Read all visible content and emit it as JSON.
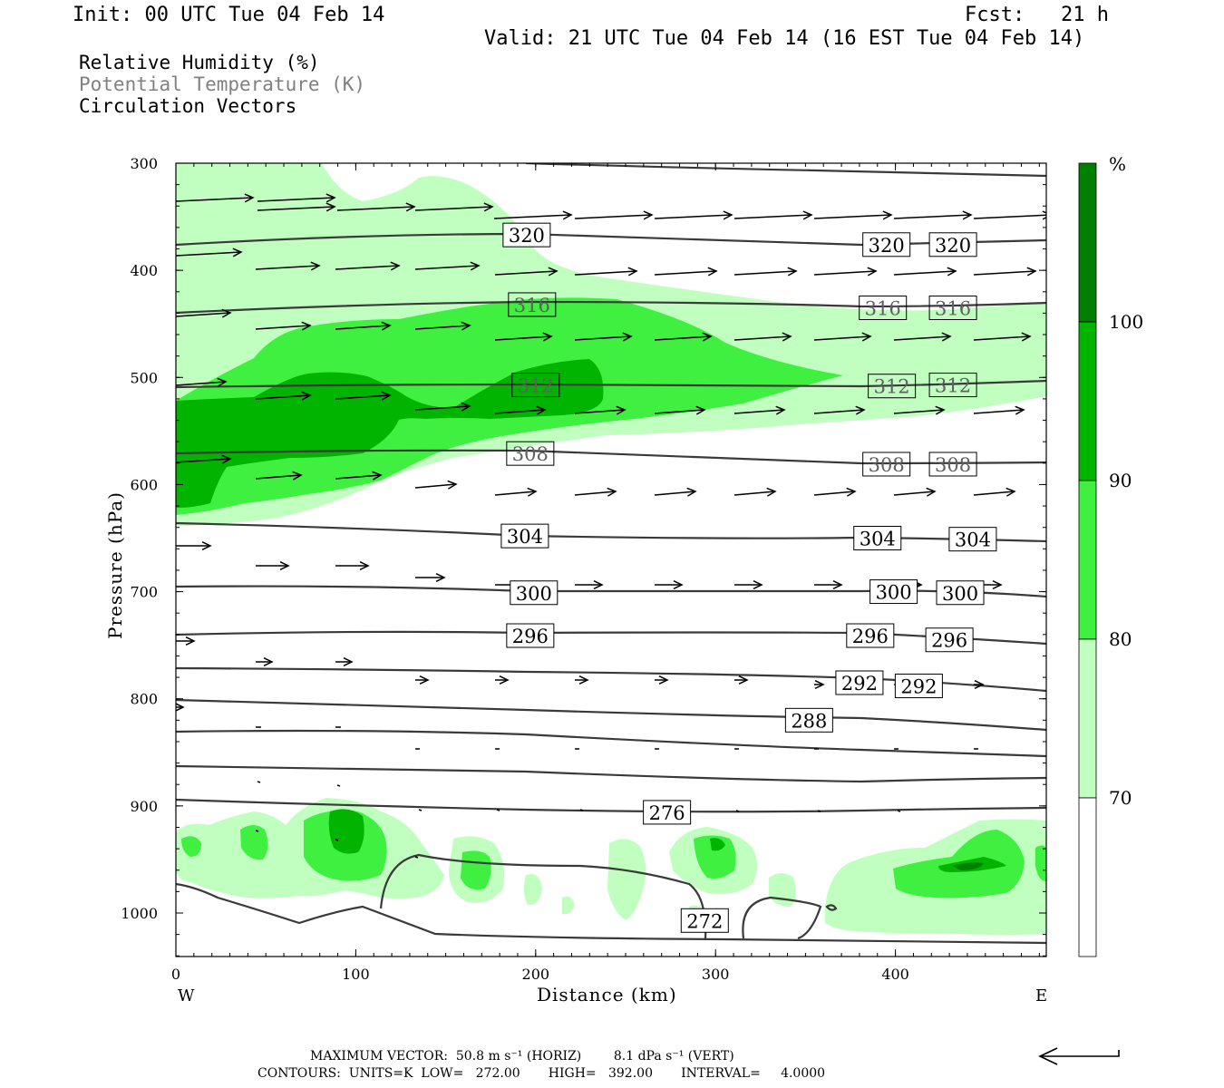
{
  "header": {
    "init": "Init: 00 UTC Tue 04 Feb 14",
    "fcst": "Fcst:   21 h",
    "valid": "Valid: 21 UTC Tue 04 Feb 14 (16 EST Tue 04 Feb 14)"
  },
  "variables": {
    "rh": "Relative Humidity (%)",
    "theta": "Potential Temperature (K)",
    "vectors": "Circulation Vectors"
  },
  "colors": {
    "rh_70": "#c0ffc0",
    "rh_80": "#40f040",
    "rh_90": "#00b400",
    "rh_100": "#008000",
    "contour": "#3a3a3a",
    "contour_labels_gray": "#606060"
  },
  "chart_data": {
    "type": "cross-section (filled contour + line contour + vectors)",
    "xlabel": "Distance (km)",
    "ylabel": "Pressure (hPa)",
    "xlim": [
      0,
      485
    ],
    "ylim": [
      1040,
      300
    ],
    "x_ticks": [
      "0",
      "100",
      "200",
      "300",
      "400"
    ],
    "y_ticks": [
      "300",
      "400",
      "500",
      "600",
      "700",
      "800",
      "900",
      "1000"
    ],
    "x_end_labels": {
      "left": "W",
      "right": "E"
    },
    "colorbar": {
      "unit": "%",
      "levels": [
        "100",
        "90",
        "80",
        "70"
      ],
      "colors": [
        "#008000",
        "#00b400",
        "#40f040",
        "#c0ffc0",
        "#ffffff"
      ]
    },
    "theta_contours": [
      {
        "K": 320,
        "label_positions": [
          [
            195,
            367
          ],
          [
            395,
            376
          ],
          [
            432,
            376
          ]
        ]
      },
      {
        "K": 316,
        "label_positions": [
          [
            198,
            432
          ],
          [
            393,
            435
          ],
          [
            432,
            435
          ]
        ]
      },
      {
        "K": 312,
        "label_positions": [
          [
            200,
            507
          ],
          [
            398,
            508
          ],
          [
            432,
            507
          ]
        ]
      },
      {
        "K": 308,
        "label_positions": [
          [
            197,
            571
          ],
          [
            395,
            581
          ],
          [
            432,
            581
          ]
        ]
      },
      {
        "K": 304,
        "label_positions": [
          [
            194,
            648
          ],
          [
            390,
            650
          ],
          [
            443,
            651
          ]
        ]
      },
      {
        "K": 300,
        "label_positions": [
          [
            199,
            701
          ],
          [
            399,
            700
          ],
          [
            436,
            701
          ]
        ]
      },
      {
        "K": 296,
        "label_positions": [
          [
            197,
            741
          ],
          [
            386,
            741
          ],
          [
            430,
            745
          ]
        ]
      },
      {
        "K": 292,
        "label_positions": [
          [
            380,
            785
          ],
          [
            413,
            788
          ]
        ]
      },
      {
        "K": 288,
        "label_positions": [
          [
            352,
            820
          ]
        ]
      },
      {
        "K": 276,
        "label_positions": [
          [
            273,
            906
          ]
        ]
      },
      {
        "K": 272,
        "label_positions": [
          [
            294,
            1007
          ]
        ]
      }
    ],
    "annotations": {
      "max_vector": "MAXIMUM VECTOR:  50.8 m s⁻¹ (HORIZ)        8.1 dPa s⁻¹ (VERT)",
      "contours": "CONTOURS:  UNITS=K  LOW=   272.00       HIGH=   392.00       INTERVAL=     4.0000"
    }
  }
}
